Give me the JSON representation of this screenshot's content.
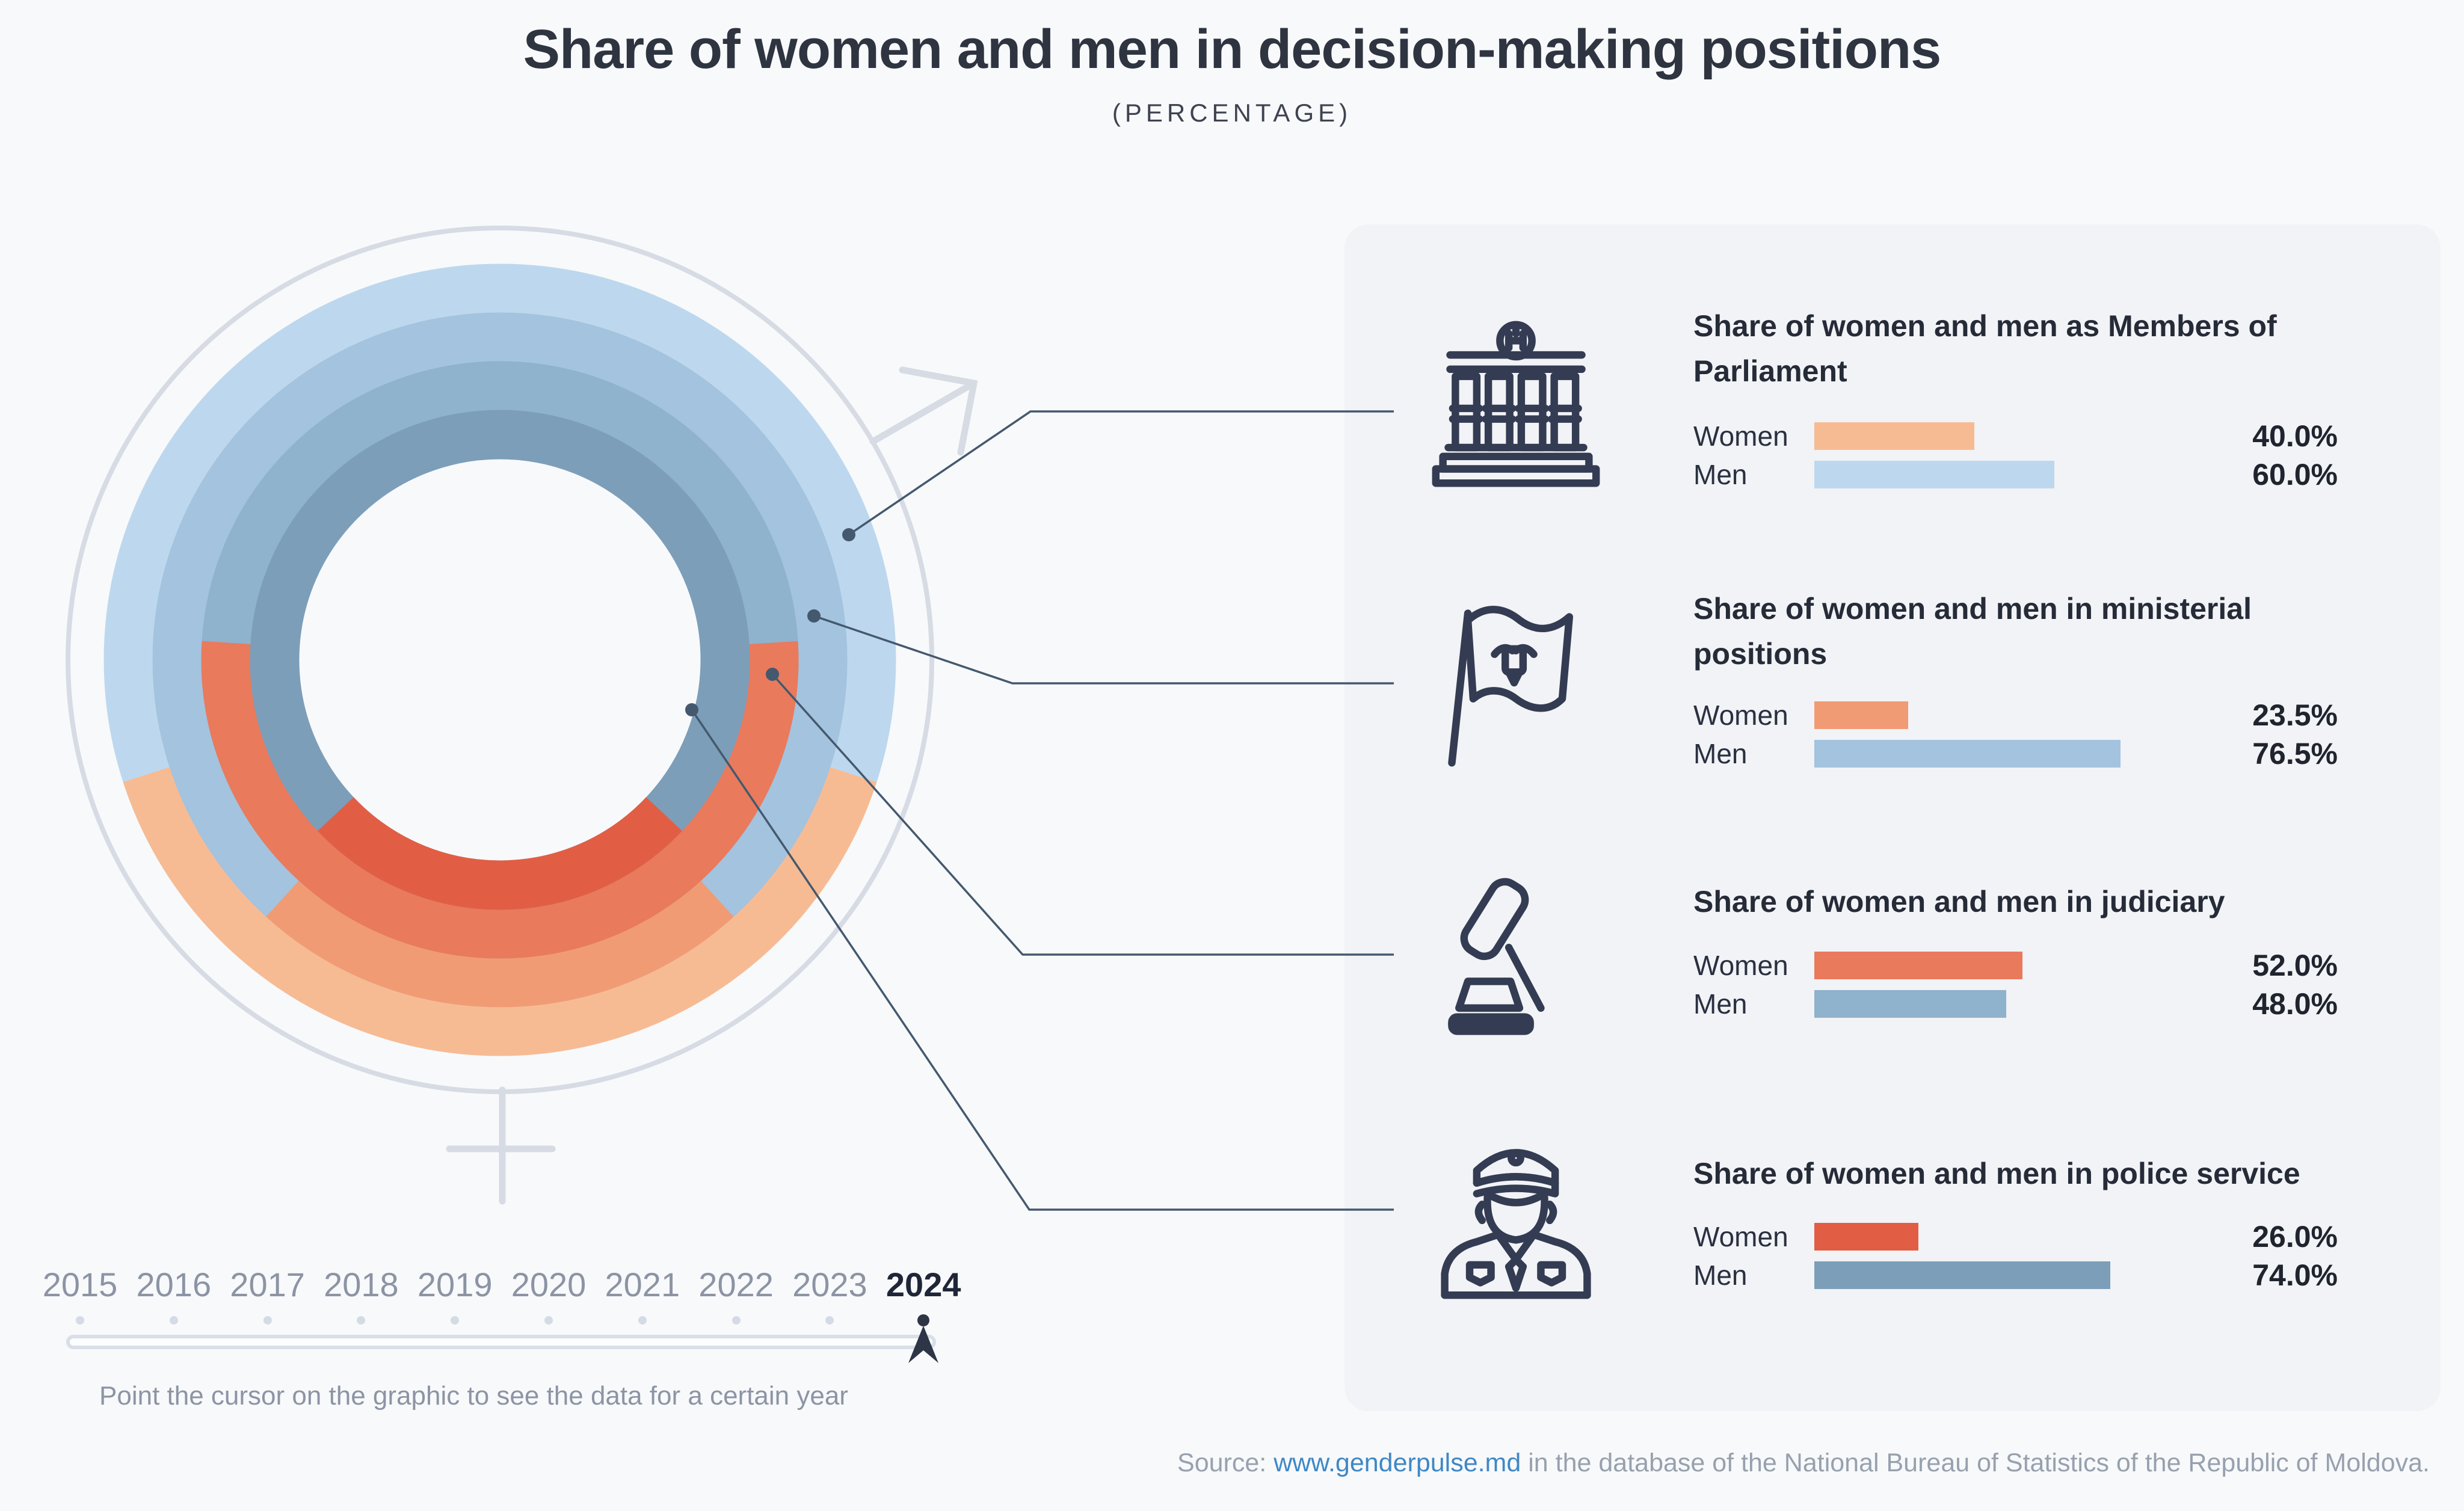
{
  "header": {
    "title": "Share of women and men in decision-making positions",
    "subtitle": "(PERCENTAGE)"
  },
  "chart_data": {
    "type": "donut",
    "title": "Share of women and men in decision-making positions (percentage)",
    "year": "2024",
    "rings_outer_to_inner": [
      "Members of Parliament",
      "Ministerial positions",
      "Judiciary",
      "Police service"
    ],
    "series": [
      {
        "name": "Women",
        "values": [
          40.0,
          23.5,
          52.0,
          26.0
        ]
      },
      {
        "name": "Men",
        "values": [
          60.0,
          76.5,
          48.0,
          74.0
        ]
      }
    ],
    "unit": "percent",
    "women_arc_position": "bottom-centered",
    "women_color_by_ring": [
      "#F7BB93",
      "#F19B74",
      "#E97A5C",
      "#E15E45"
    ],
    "men_color_by_ring": [
      "#BDD8EE",
      "#A3C3DE",
      "#8FB2CD",
      "#7C9EB9"
    ]
  },
  "sections": [
    {
      "icon": "parliament-building-icon",
      "title": "Share of women and men as Members of Parliament",
      "rows": [
        {
          "label": "Women",
          "value": "40.0%",
          "pct": 40.0,
          "color": "#F7BB93"
        },
        {
          "label": "Men",
          "value": "60.0%",
          "pct": 60.0,
          "color": "#BDD8EE"
        }
      ]
    },
    {
      "icon": "flag-icon",
      "title": "Share of women and men in ministerial positions",
      "rows": [
        {
          "label": "Women",
          "value": "23.5%",
          "pct": 23.5,
          "color": "#F19B74"
        },
        {
          "label": "Men",
          "value": "76.5%",
          "pct": 76.5,
          "color": "#A3C3DE"
        }
      ]
    },
    {
      "icon": "gavel-icon",
      "title": "Share of women and men in judiciary",
      "rows": [
        {
          "label": "Women",
          "value": "52.0%",
          "pct": 52.0,
          "color": "#E97A5C"
        },
        {
          "label": "Men",
          "value": "48.0%",
          "pct": 48.0,
          "color": "#8FB2CD"
        }
      ]
    },
    {
      "icon": "police-officer-icon",
      "title": "Share of women and men in police service",
      "rows": [
        {
          "label": "Women",
          "value": "26.0%",
          "pct": 26.0,
          "color": "#E15E45"
        },
        {
          "label": "Men",
          "value": "74.0%",
          "pct": 74.0,
          "color": "#7C9EB9"
        }
      ]
    }
  ],
  "timeline": {
    "years": [
      "2015",
      "2016",
      "2017",
      "2018",
      "2019",
      "2020",
      "2021",
      "2022",
      "2023",
      "2024"
    ],
    "selected_year": "2024",
    "hint": "Point the cursor on the graphic to see the data for a certain year"
  },
  "source": {
    "label": "Source: ",
    "link_text": "www.genderpulse.md",
    "rest": " in the database of the National Bureau of Statistics of the Republic of Moldova."
  },
  "colors": {
    "page_bg": "#F8F9FB",
    "panel_bg": "#F1F3F6",
    "accent_dark": "#2D3547",
    "callout_line": "#44596E",
    "gender_symbol": "#D6DBE4",
    "text_gray": "#8C94A4",
    "link_blue": "#3F88C5"
  }
}
